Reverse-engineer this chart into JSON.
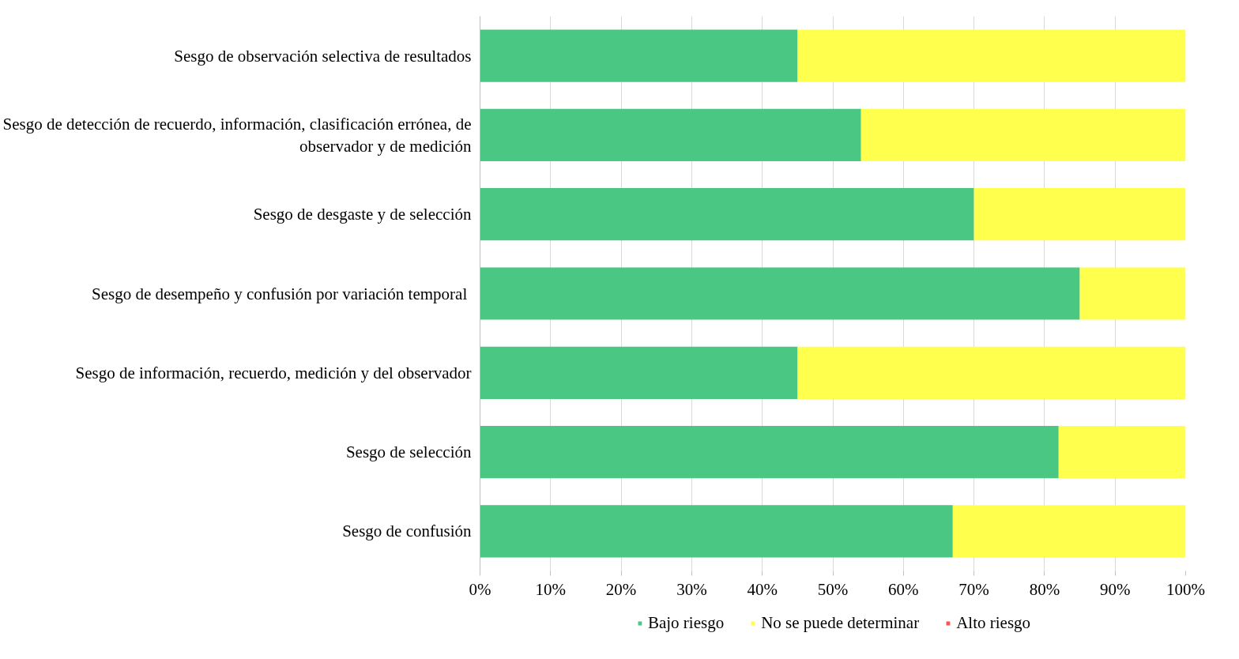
{
  "chart_data": {
    "type": "bar",
    "orientation": "horizontal",
    "stacked": true,
    "categories": [
      "Sesgo de observación selectiva de resultados",
      "Sesgo de detección de recuerdo, información, clasificación errónea, de observador y de medición",
      "Sesgo de desgaste y de selección",
      "Sesgo  de desempeño y confusión por variación temporal",
      "Sesgo de información, recuerdo, medición y del observador",
      "Sesgo de selección",
      "Sesgo de confusión"
    ],
    "series": [
      {
        "name": "Bajo riesgo",
        "color": "#4bc784",
        "values": [
          45,
          54,
          70,
          85,
          45,
          82,
          67
        ]
      },
      {
        "name": "No se puede determinar",
        "color": "#ffff4d",
        "values": [
          55,
          46,
          30,
          15,
          55,
          18,
          33
        ]
      },
      {
        "name": "Alto riesgo",
        "color": "#ff4f4f",
        "values": [
          0,
          0,
          0,
          0,
          0,
          0,
          0
        ]
      }
    ],
    "xlim": [
      0,
      100
    ],
    "xticks": [
      {
        "value": 0,
        "label": "0%"
      },
      {
        "value": 10,
        "label": "10%"
      },
      {
        "value": 20,
        "label": "20%"
      },
      {
        "value": 30,
        "label": "30%"
      },
      {
        "value": 40,
        "label": "40%"
      },
      {
        "value": 50,
        "label": "50%"
      },
      {
        "value": 60,
        "label": "60%"
      },
      {
        "value": 70,
        "label": "70%"
      },
      {
        "value": 80,
        "label": "80%"
      },
      {
        "value": 90,
        "label": "90%"
      },
      {
        "value": 100,
        "label": "100%"
      }
    ],
    "grid": "x",
    "legend": "bottom"
  }
}
